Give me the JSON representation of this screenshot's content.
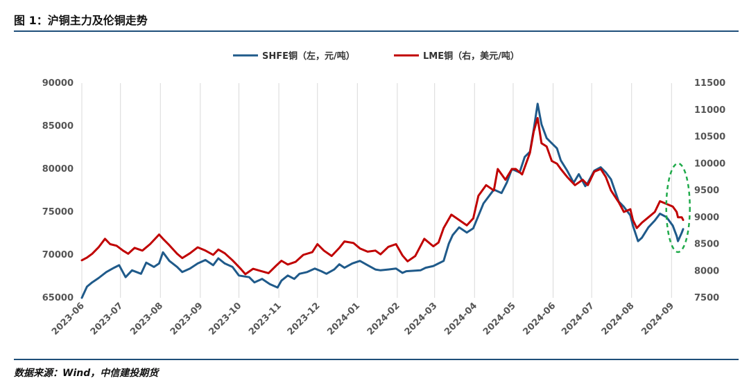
{
  "figure": {
    "title": "图 1：沪铜主力及伦铜走势",
    "source": "数据来源：Wind，中信建投期货"
  },
  "colors": {
    "shfe": "#1f5a8a",
    "lme": "#c00000",
    "grid": "#d9d9d9",
    "rule": "#1e4e79",
    "annotation": "#1faa4a"
  },
  "chart_data": {
    "type": "line",
    "x_ticks": [
      "2023-06",
      "2023-07",
      "2023-08",
      "2023-09",
      "2023-10",
      "2023-11",
      "2023-12",
      "2024-01",
      "2024-02",
      "2024-03",
      "2024-04",
      "2024-05",
      "2024-06",
      "2024-07",
      "2024-08",
      "2024-09"
    ],
    "y_left": {
      "ticks": [
        65000,
        70000,
        75000,
        80000,
        85000,
        90000
      ],
      "ylim": [
        65000,
        90000
      ]
    },
    "y_right": {
      "ticks": [
        7500,
        8000,
        8500,
        9000,
        9500,
        10000,
        10500,
        11000,
        11500
      ],
      "ylim": [
        7500,
        11500
      ]
    },
    "grid": "vertical",
    "legend_position": "top-center",
    "annotation": "green dashed ellipse around latest values (2024-09)",
    "series": [
      {
        "name": "SHFE铜（左，元/吨）",
        "axis": "left",
        "points": [
          [
            "2023-06-01",
            65000
          ],
          [
            "2023-06-05",
            66300
          ],
          [
            "2023-06-09",
            66800
          ],
          [
            "2023-06-14",
            67300
          ],
          [
            "2023-06-20",
            68000
          ],
          [
            "2023-06-26",
            68500
          ],
          [
            "2023-06-30",
            68800
          ],
          [
            "2023-07-05",
            67400
          ],
          [
            "2023-07-10",
            68200
          ],
          [
            "2023-07-17",
            67800
          ],
          [
            "2023-07-21",
            69100
          ],
          [
            "2023-07-27",
            68600
          ],
          [
            "2023-07-31",
            69000
          ],
          [
            "2023-08-03",
            70300
          ],
          [
            "2023-08-08",
            69300
          ],
          [
            "2023-08-14",
            68600
          ],
          [
            "2023-08-18",
            68000
          ],
          [
            "2023-08-24",
            68400
          ],
          [
            "2023-08-30",
            69000
          ],
          [
            "2023-09-05",
            69400
          ],
          [
            "2023-09-11",
            68800
          ],
          [
            "2023-09-15",
            69600
          ],
          [
            "2023-09-20",
            69000
          ],
          [
            "2023-09-26",
            68600
          ],
          [
            "2023-10-01",
            67600
          ],
          [
            "2023-10-09",
            67400
          ],
          [
            "2023-10-13",
            66800
          ],
          [
            "2023-10-19",
            67200
          ],
          [
            "2023-10-25",
            66600
          ],
          [
            "2023-10-31",
            66200
          ],
          [
            "2023-11-03",
            67000
          ],
          [
            "2023-11-08",
            67600
          ],
          [
            "2023-11-13",
            67200
          ],
          [
            "2023-11-17",
            67800
          ],
          [
            "2023-11-23",
            68000
          ],
          [
            "2023-11-29",
            68400
          ],
          [
            "2023-12-04",
            68100
          ],
          [
            "2023-12-08",
            67800
          ],
          [
            "2023-12-14",
            68300
          ],
          [
            "2023-12-18",
            68900
          ],
          [
            "2023-12-22",
            68500
          ],
          [
            "2023-12-28",
            69000
          ],
          [
            "2024-01-03",
            69300
          ],
          [
            "2024-01-09",
            68800
          ],
          [
            "2024-01-15",
            68300
          ],
          [
            "2024-01-19",
            68200
          ],
          [
            "2024-01-25",
            68300
          ],
          [
            "2024-01-31",
            68400
          ],
          [
            "2024-02-05",
            67900
          ],
          [
            "2024-02-08",
            68100
          ],
          [
            "2024-02-19",
            68200
          ],
          [
            "2024-02-23",
            68500
          ],
          [
            "2024-02-29",
            68700
          ],
          [
            "2024-03-04",
            69000
          ],
          [
            "2024-03-08",
            69300
          ],
          [
            "2024-03-12",
            71300
          ],
          [
            "2024-03-15",
            72300
          ],
          [
            "2024-03-20",
            73200
          ],
          [
            "2024-03-26",
            72600
          ],
          [
            "2024-03-31",
            73100
          ],
          [
            "2024-04-03",
            74200
          ],
          [
            "2024-04-08",
            76000
          ],
          [
            "2024-04-12",
            76800
          ],
          [
            "2024-04-16",
            77600
          ],
          [
            "2024-04-22",
            77200
          ],
          [
            "2024-04-26",
            78400
          ],
          [
            "2024-04-30",
            80000
          ],
          [
            "2024-05-06",
            79600
          ],
          [
            "2024-05-10",
            81400
          ],
          [
            "2024-05-14",
            82000
          ],
          [
            "2024-05-17",
            84600
          ],
          [
            "2024-05-20",
            87600
          ],
          [
            "2024-05-23",
            85200
          ],
          [
            "2024-05-27",
            83600
          ],
          [
            "2024-05-31",
            83000
          ],
          [
            "2024-06-04",
            82400
          ],
          [
            "2024-06-07",
            81000
          ],
          [
            "2024-06-12",
            79800
          ],
          [
            "2024-06-17",
            78400
          ],
          [
            "2024-06-21",
            79400
          ],
          [
            "2024-06-26",
            78000
          ],
          [
            "2024-06-28",
            78400
          ],
          [
            "2024-07-03",
            79800
          ],
          [
            "2024-07-08",
            80200
          ],
          [
            "2024-07-12",
            79600
          ],
          [
            "2024-07-16",
            78800
          ],
          [
            "2024-07-22",
            76200
          ],
          [
            "2024-07-26",
            75600
          ],
          [
            "2024-07-31",
            74600
          ],
          [
            "2024-08-02",
            73400
          ],
          [
            "2024-08-06",
            71600
          ],
          [
            "2024-08-09",
            72000
          ],
          [
            "2024-08-14",
            73200
          ],
          [
            "2024-08-19",
            74000
          ],
          [
            "2024-08-23",
            74800
          ],
          [
            "2024-08-28",
            74400
          ],
          [
            "2024-09-02",
            73400
          ],
          [
            "2024-09-05",
            72200
          ],
          [
            "2024-09-06",
            71600
          ],
          [
            "2024-09-09",
            72600
          ],
          [
            "2024-09-10",
            73000
          ]
        ]
      },
      {
        "name": "LME铜（右，美元/吨）",
        "axis": "right",
        "points": [
          [
            "2023-06-01",
            8200
          ],
          [
            "2023-06-05",
            8250
          ],
          [
            "2023-06-09",
            8320
          ],
          [
            "2023-06-14",
            8440
          ],
          [
            "2023-06-19",
            8600
          ],
          [
            "2023-06-23",
            8500
          ],
          [
            "2023-06-28",
            8470
          ],
          [
            "2023-07-03",
            8380
          ],
          [
            "2023-07-07",
            8320
          ],
          [
            "2023-07-12",
            8430
          ],
          [
            "2023-07-18",
            8380
          ],
          [
            "2023-07-24",
            8500
          ],
          [
            "2023-07-31",
            8680
          ],
          [
            "2023-08-03",
            8600
          ],
          [
            "2023-08-08",
            8480
          ],
          [
            "2023-08-14",
            8320
          ],
          [
            "2023-08-18",
            8240
          ],
          [
            "2023-08-24",
            8330
          ],
          [
            "2023-08-30",
            8440
          ],
          [
            "2023-09-05",
            8380
          ],
          [
            "2023-09-11",
            8300
          ],
          [
            "2023-09-15",
            8400
          ],
          [
            "2023-09-20",
            8330
          ],
          [
            "2023-09-26",
            8200
          ],
          [
            "2023-10-02",
            8050
          ],
          [
            "2023-10-06",
            7940
          ],
          [
            "2023-10-12",
            8040
          ],
          [
            "2023-10-18",
            8000
          ],
          [
            "2023-10-24",
            7960
          ],
          [
            "2023-10-30",
            8100
          ],
          [
            "2023-11-03",
            8190
          ],
          [
            "2023-11-08",
            8120
          ],
          [
            "2023-11-14",
            8170
          ],
          [
            "2023-11-20",
            8300
          ],
          [
            "2023-11-27",
            8350
          ],
          [
            "2023-12-01",
            8500
          ],
          [
            "2023-12-06",
            8380
          ],
          [
            "2023-12-12",
            8280
          ],
          [
            "2023-12-18",
            8430
          ],
          [
            "2023-12-22",
            8550
          ],
          [
            "2023-12-29",
            8520
          ],
          [
            "2024-01-03",
            8420
          ],
          [
            "2024-01-09",
            8360
          ],
          [
            "2024-01-15",
            8380
          ],
          [
            "2024-01-19",
            8310
          ],
          [
            "2024-01-25",
            8450
          ],
          [
            "2024-01-31",
            8500
          ],
          [
            "2024-02-05",
            8290
          ],
          [
            "2024-02-09",
            8180
          ],
          [
            "2024-02-15",
            8280
          ],
          [
            "2024-02-22",
            8600
          ],
          [
            "2024-02-29",
            8460
          ],
          [
            "2024-03-04",
            8530
          ],
          [
            "2024-03-08",
            8800
          ],
          [
            "2024-03-14",
            9050
          ],
          [
            "2024-03-20",
            8950
          ],
          [
            "2024-03-26",
            8850
          ],
          [
            "2024-03-31",
            8980
          ],
          [
            "2024-04-04",
            9400
          ],
          [
            "2024-04-10",
            9600
          ],
          [
            "2024-04-16",
            9500
          ],
          [
            "2024-04-19",
            9900
          ],
          [
            "2024-04-25",
            9700
          ],
          [
            "2024-04-30",
            9900
          ],
          [
            "2024-05-03",
            9900
          ],
          [
            "2024-05-08",
            9800
          ],
          [
            "2024-05-14",
            10200
          ],
          [
            "2024-05-17",
            10600
          ],
          [
            "2024-05-20",
            10850
          ],
          [
            "2024-05-23",
            10380
          ],
          [
            "2024-05-27",
            10320
          ],
          [
            "2024-05-31",
            10050
          ],
          [
            "2024-06-04",
            10000
          ],
          [
            "2024-06-07",
            9900
          ],
          [
            "2024-06-12",
            9750
          ],
          [
            "2024-06-18",
            9600
          ],
          [
            "2024-06-24",
            9700
          ],
          [
            "2024-06-28",
            9600
          ],
          [
            "2024-07-03",
            9850
          ],
          [
            "2024-07-08",
            9900
          ],
          [
            "2024-07-12",
            9750
          ],
          [
            "2024-07-16",
            9500
          ],
          [
            "2024-07-22",
            9280
          ],
          [
            "2024-07-26",
            9100
          ],
          [
            "2024-07-31",
            9150
          ],
          [
            "2024-08-02",
            8950
          ],
          [
            "2024-08-05",
            8800
          ],
          [
            "2024-08-09",
            8900
          ],
          [
            "2024-08-14",
            9000
          ],
          [
            "2024-08-19",
            9100
          ],
          [
            "2024-08-23",
            9300
          ],
          [
            "2024-08-28",
            9250
          ],
          [
            "2024-09-02",
            9200
          ],
          [
            "2024-09-05",
            9100
          ],
          [
            "2024-09-06",
            9000
          ],
          [
            "2024-09-09",
            9000
          ],
          [
            "2024-09-10",
            8950
          ]
        ]
      }
    ]
  }
}
